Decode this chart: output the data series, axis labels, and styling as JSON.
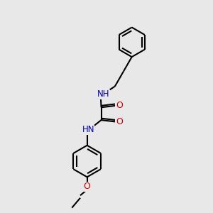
{
  "background_color": "#e8e8e8",
  "bond_color": "#000000",
  "N_color": "#0000cc",
  "O_color": "#cc0000",
  "line_width": 1.5,
  "figsize": [
    3.0,
    3.0
  ],
  "dpi": 100,
  "xlim": [
    0,
    10
  ],
  "ylim": [
    0,
    10
  ]
}
